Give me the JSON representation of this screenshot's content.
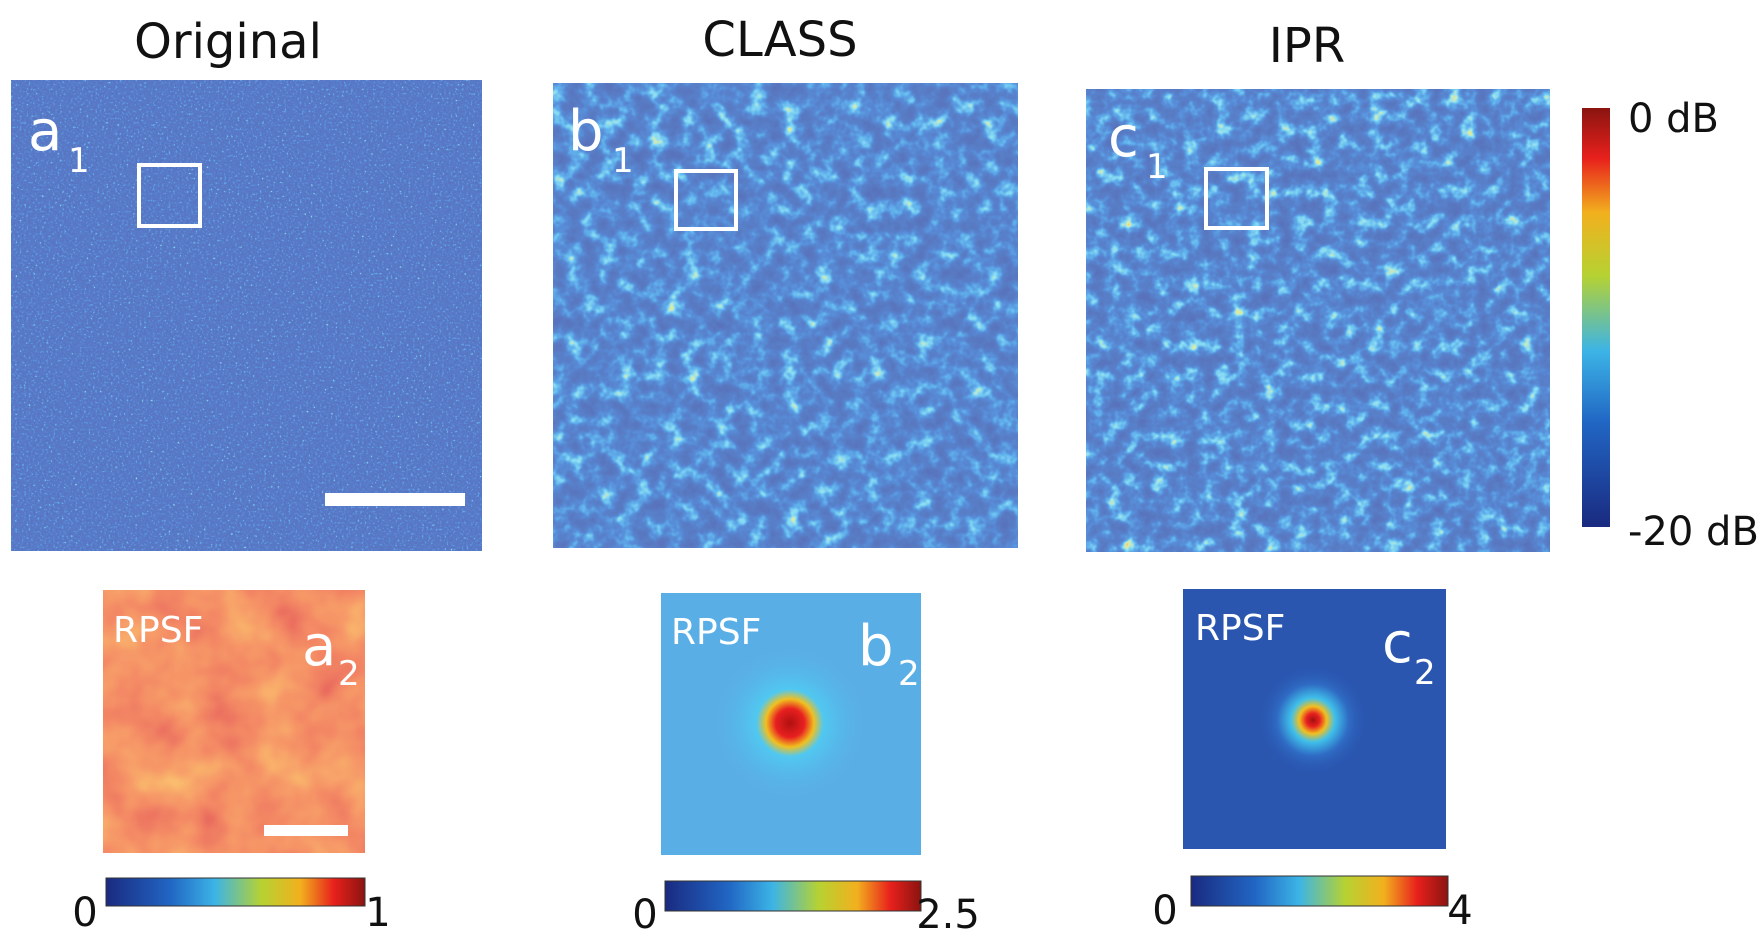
{
  "columns": [
    {
      "title": "Original",
      "main_label": {
        "letter": "a",
        "sub": "1"
      },
      "rpsf_label": "RPSF",
      "rpsf_panel": {
        "letter": "a",
        "sub": "2"
      },
      "colorbar": {
        "min": 0,
        "max": 1
      }
    },
    {
      "title": "CLASS",
      "main_label": {
        "letter": "b",
        "sub": "1"
      },
      "rpsf_label": "RPSF",
      "rpsf_panel": {
        "letter": "b",
        "sub": "2"
      },
      "colorbar": {
        "min": 0,
        "max": 2.5
      }
    },
    {
      "title": "IPR",
      "main_label": {
        "letter": "c",
        "sub": "1"
      },
      "rpsf_label": "RPSF",
      "rpsf_panel": {
        "letter": "c",
        "sub": "2"
      },
      "colorbar": {
        "min": 0,
        "max": 4
      }
    }
  ],
  "main_colorbar": {
    "top": "0 dB",
    "bottom": "-20 dB"
  }
}
